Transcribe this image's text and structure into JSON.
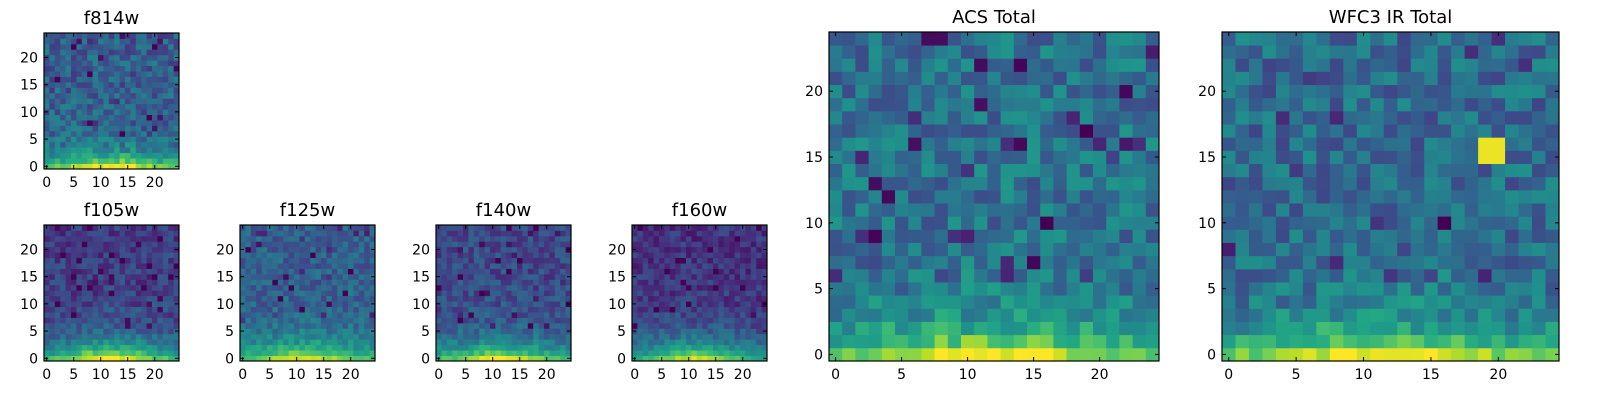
{
  "chart_data": [
    {
      "type": "heatmap",
      "title": "f814w",
      "x_ticks": [
        "0",
        "5",
        "10",
        "15",
        "20"
      ],
      "y_ticks": [
        "0",
        "5",
        "10",
        "15",
        "20"
      ],
      "xlim": [
        0,
        24
      ],
      "ylim": [
        0,
        24
      ],
      "grid": false,
      "colormap": "viridis",
      "pattern": "bright at bottom center, dark speckled top",
      "seed": 11,
      "bright_scale": 1.0,
      "bright_falloff": 2.4,
      "base": 0.3,
      "noise": 0.28
    },
    {
      "type": "heatmap",
      "title": "f105w",
      "x_ticks": [
        "0",
        "5",
        "10",
        "15",
        "20"
      ],
      "y_ticks": [
        "0",
        "5",
        "10",
        "15",
        "20"
      ],
      "xlim": [
        0,
        24
      ],
      "ylim": [
        0,
        24
      ],
      "grid": false,
      "colormap": "viridis",
      "pattern": "bright at bottom center, dark at top",
      "seed": 23,
      "bright_scale": 1.0,
      "bright_falloff": 3.2,
      "base": 0.18,
      "noise": 0.22
    },
    {
      "type": "heatmap",
      "title": "f125w",
      "x_ticks": [
        "0",
        "5",
        "10",
        "15",
        "20"
      ],
      "y_ticks": [
        "0",
        "5",
        "10",
        "15",
        "20"
      ],
      "xlim": [
        0,
        24
      ],
      "ylim": [
        0,
        24
      ],
      "grid": false,
      "colormap": "viridis",
      "pattern": "bright at bottom center, mid-dark at top",
      "seed": 37,
      "bright_scale": 0.95,
      "bright_falloff": 3.0,
      "base": 0.3,
      "noise": 0.22
    },
    {
      "type": "heatmap",
      "title": "f140w",
      "x_ticks": [
        "0",
        "5",
        "10",
        "15",
        "20"
      ],
      "y_ticks": [
        "0",
        "5",
        "10",
        "15",
        "20"
      ],
      "xlim": [
        0,
        24
      ],
      "ylim": [
        0,
        24
      ],
      "grid": false,
      "colormap": "viridis",
      "pattern": "bright at bottom center, dark at top",
      "seed": 41,
      "bright_scale": 0.95,
      "bright_falloff": 3.0,
      "base": 0.22,
      "noise": 0.22
    },
    {
      "type": "heatmap",
      "title": "f160w",
      "x_ticks": [
        "0",
        "5",
        "10",
        "15",
        "20"
      ],
      "y_ticks": [
        "0",
        "5",
        "10",
        "15",
        "20"
      ],
      "xlim": [
        0,
        24
      ],
      "ylim": [
        0,
        24
      ],
      "grid": false,
      "colormap": "viridis",
      "pattern": "bright at bottom center, dark at top",
      "seed": 53,
      "bright_scale": 0.9,
      "bright_falloff": 3.4,
      "base": 0.15,
      "noise": 0.2
    },
    {
      "type": "heatmap",
      "title": "ACS Total",
      "x_ticks": [
        "0",
        "5",
        "10",
        "15",
        "20"
      ],
      "y_ticks": [
        "0",
        "5",
        "10",
        "15",
        "20"
      ],
      "xlim": [
        0,
        24
      ],
      "ylim": [
        0,
        24
      ],
      "grid": false,
      "colormap": "viridis",
      "pattern": "bright band at bottom center, noisy teal elsewhere",
      "seed": 67,
      "bright_scale": 1.0,
      "bright_falloff": 2.0,
      "base": 0.38,
      "noise": 0.3
    },
    {
      "type": "heatmap",
      "title": "WFC3 IR Total",
      "x_ticks": [
        "0",
        "5",
        "10",
        "15",
        "20"
      ],
      "y_ticks": [
        "0",
        "5",
        "10",
        "15",
        "20"
      ],
      "xlim": [
        0,
        24
      ],
      "ylim": [
        0,
        24
      ],
      "grid": false,
      "colormap": "viridis",
      "pattern": "bright band at bottom center, bright spot near x=19-20, y=15-16",
      "seed": 79,
      "bright_scale": 1.0,
      "bright_falloff": 2.1,
      "base": 0.35,
      "noise": 0.3,
      "hotspot": {
        "x": [
          19,
          20
        ],
        "y": [
          15,
          16
        ],
        "value": 0.97
      }
    }
  ]
}
